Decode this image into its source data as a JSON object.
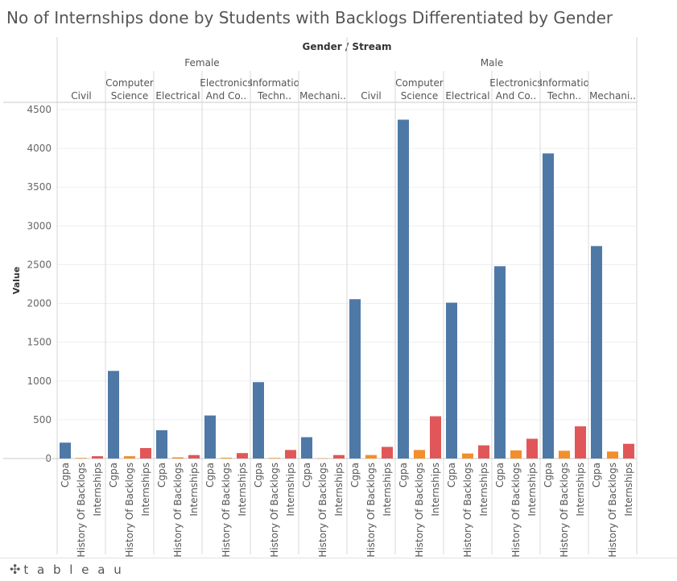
{
  "title": "No of Internships done by Students with Backlogs Differentiated by Gender",
  "footer": {
    "brand": "tableau",
    "brand_icon": "tableau-plus-icon"
  },
  "chart_data": {
    "type": "bar",
    "column_header": "Gender / Stream",
    "ylabel": "Value",
    "ylim": [
      0,
      4500
    ],
    "yticks": [
      0,
      500,
      1000,
      1500,
      2000,
      2500,
      3000,
      3500,
      4000,
      4500
    ],
    "measures": [
      "Cgpa",
      "History Of Backlogs",
      "Internships"
    ],
    "measure_colors": [
      "#4e79a7",
      "#f28e2b",
      "#e15759"
    ],
    "grid": true,
    "groups": [
      {
        "gender": "Female",
        "streams": [
          {
            "label": [
              "Civil"
            ],
            "values": [
              205,
              8,
              30
            ]
          },
          {
            "label": [
              "Computer",
              "Science"
            ],
            "values": [
              1130,
              30,
              135
            ]
          },
          {
            "label": [
              "Electrical"
            ],
            "values": [
              365,
              15,
              45
            ]
          },
          {
            "label": [
              "Electronics",
              "And Co.."
            ],
            "values": [
              555,
              10,
              70
            ]
          },
          {
            "label": [
              "Informatio",
              "Techn.."
            ],
            "values": [
              985,
              8,
              110
            ]
          },
          {
            "label": [
              "Mechani.."
            ],
            "values": [
              275,
              3,
              45
            ]
          }
        ]
      },
      {
        "gender": "Male",
        "streams": [
          {
            "label": [
              "Civil"
            ],
            "values": [
              2055,
              45,
              150
            ]
          },
          {
            "label": [
              "Computer",
              "Science"
            ],
            "values": [
              4370,
              110,
              545
            ]
          },
          {
            "label": [
              "Electrical"
            ],
            "values": [
              2010,
              65,
              170
            ]
          },
          {
            "label": [
              "Electronics",
              "And Co.."
            ],
            "values": [
              2480,
              105,
              255
            ]
          },
          {
            "label": [
              "Informatio",
              "Techn.."
            ],
            "values": [
              3935,
              100,
              415
            ]
          },
          {
            "label": [
              "Mechani.."
            ],
            "values": [
              2740,
              90,
              190
            ]
          }
        ]
      }
    ]
  }
}
